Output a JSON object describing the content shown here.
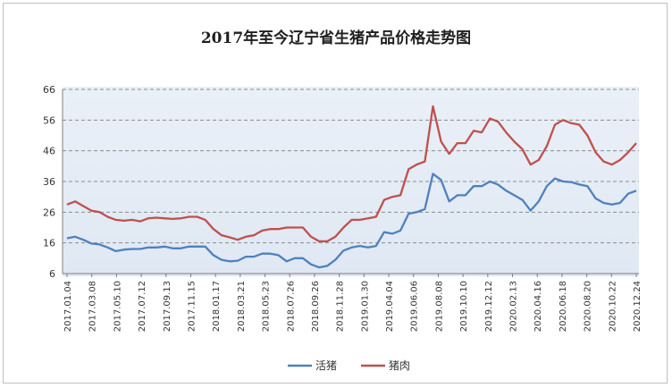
{
  "chart_data": {
    "type": "line",
    "title": "2017年至今辽宁省生猪产品价格走势图",
    "xlabel": "",
    "ylabel": "",
    "ylim": [
      6,
      66
    ],
    "yticks": [
      6,
      16,
      26,
      36,
      46,
      56,
      66
    ],
    "grid": true,
    "legend_position": "bottom",
    "x_tick_labels": [
      "2017.01.04",
      "2017.03.08",
      "2017.05.10",
      "2017.07.12",
      "2017.09.13",
      "2017.11.15",
      "2018.01.17",
      "2018.03.21",
      "2018.05.23",
      "2018.07.26",
      "2018.09.26",
      "2018.11.28",
      "2019.01.30",
      "2019.04.04",
      "2019.06.06",
      "2019.08.08",
      "2019.10.10",
      "2019.12.12",
      "2020.02.13",
      "2020.04.16",
      "2020.06.18",
      "2020.08.20",
      "2020.10.22",
      "2020.12.24"
    ],
    "series": [
      {
        "name": "活猪",
        "color": "#4f81bd",
        "values": [
          17.5,
          18.0,
          17.0,
          15.8,
          15.5,
          14.5,
          13.3,
          13.8,
          14.0,
          14.0,
          14.5,
          14.5,
          14.8,
          14.2,
          14.2,
          14.8,
          14.8,
          14.8,
          12.0,
          10.5,
          10.0,
          10.2,
          11.5,
          11.5,
          12.5,
          12.5,
          12.0,
          10.0,
          11.0,
          11.0,
          9.0,
          8.0,
          8.5,
          10.5,
          13.5,
          14.5,
          15.0,
          14.5,
          15.0,
          19.5,
          19.0,
          20.0,
          25.5,
          26.0,
          27.0,
          38.5,
          36.5,
          29.5,
          31.5,
          31.5,
          34.5,
          34.5,
          36.0,
          35.0,
          33.0,
          31.5,
          30.0,
          26.5,
          29.5,
          34.5,
          37.0,
          36.0,
          35.8,
          35.0,
          34.5,
          30.5,
          29.0,
          28.5,
          29.0,
          32.0,
          33.0
        ]
      },
      {
        "name": "猪肉",
        "color": "#c0504d",
        "values": [
          28.5,
          29.5,
          28.0,
          26.5,
          26.0,
          24.5,
          23.5,
          23.2,
          23.5,
          23.0,
          24.0,
          24.2,
          24.0,
          23.8,
          24.0,
          24.5,
          24.5,
          23.5,
          20.5,
          18.5,
          17.8,
          17.0,
          18.0,
          18.5,
          20.0,
          20.5,
          20.5,
          21.0,
          21.0,
          21.0,
          18.0,
          16.5,
          16.5,
          18.0,
          21.0,
          23.5,
          23.5,
          24.0,
          24.5,
          30.0,
          31.0,
          31.5,
          40.0,
          41.5,
          42.5,
          60.5,
          49.0,
          45.0,
          48.5,
          48.5,
          52.5,
          52.0,
          56.5,
          55.5,
          52.0,
          49.0,
          46.5,
          41.5,
          43.0,
          47.5,
          54.5,
          56.0,
          55.0,
          54.5,
          51.0,
          45.5,
          42.5,
          41.5,
          43.0,
          45.5,
          48.5
        ]
      }
    ]
  }
}
